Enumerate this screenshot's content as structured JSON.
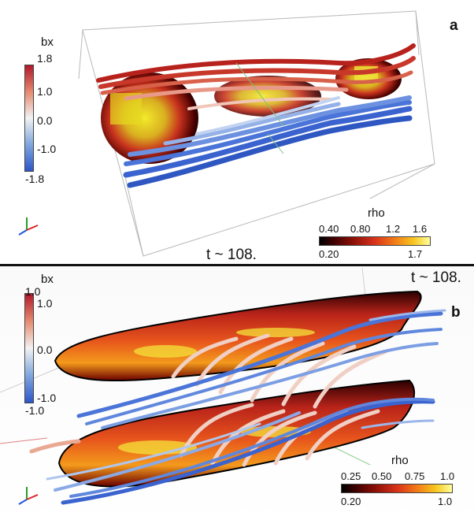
{
  "panel_a": {
    "letter": "a",
    "time_label": "t ~ 108.",
    "bx_bar": {
      "title": "bx",
      "max": "1.8",
      "mid_hi": "1.0",
      "zero": "0.0",
      "mid_lo": "-1.0",
      "min": "-1.8"
    },
    "rho_bar": {
      "title": "rho",
      "top_ticks": [
        "0.40",
        "0.80",
        "1.2",
        "1.6"
      ],
      "min": "0.20",
      "max": "1.7"
    }
  },
  "panel_b": {
    "letter": "b",
    "time_label": "t ~ 108.",
    "bx_bar": {
      "title": "bx",
      "max": "1.0",
      "mid_hi": "1.0",
      "zero": "0.0",
      "mid_lo": "-1.0",
      "min": "-1.0"
    },
    "rho_bar": {
      "title": "rho",
      "top_ticks": [
        "0.25",
        "0.50",
        "0.75",
        "1.0"
      ],
      "min": "0.20",
      "max": "1.0"
    }
  },
  "colors": {
    "positive_bx": "#c8322b",
    "negative_bx": "#3f6fd6",
    "rho_low": "#000000",
    "rho_high": "#ffff9a",
    "divider": "#111111"
  },
  "icons": [
    "orientation-axes-icon"
  ]
}
